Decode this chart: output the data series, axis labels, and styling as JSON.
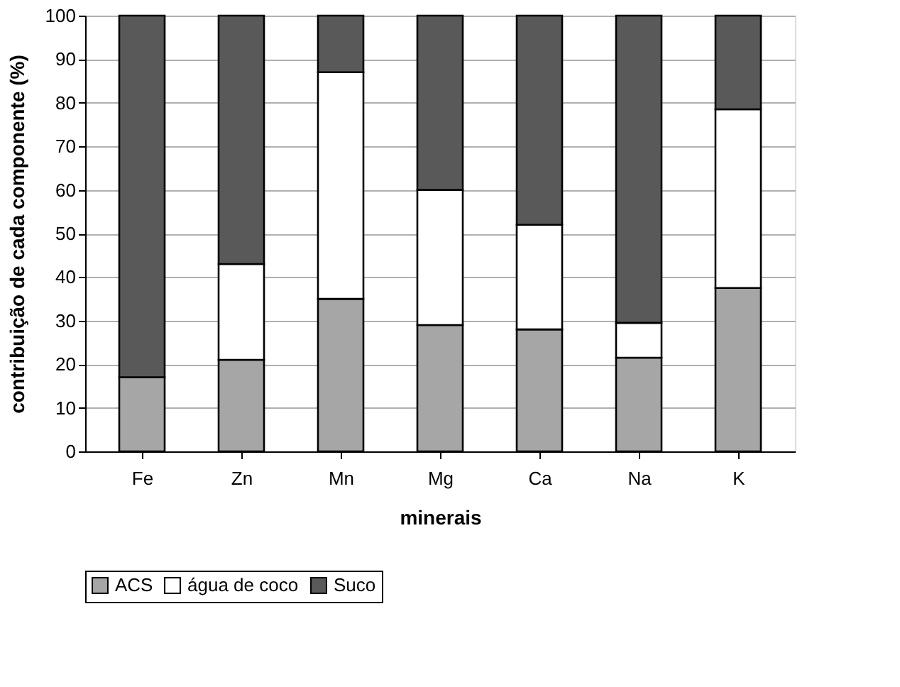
{
  "chart_data": {
    "type": "bar",
    "stacked": true,
    "xlabel": "minerais",
    "ylabel": "contribuição de cada componente (%)",
    "categories": [
      "Fe",
      "Zn",
      "Mn",
      "Mg",
      "Ca",
      "Na",
      "K"
    ],
    "series": [
      {
        "name": "ACS",
        "color": "#a6a6a6",
        "values": [
          17,
          21,
          35,
          29,
          28,
          21.5,
          37.5
        ]
      },
      {
        "name": "água de coco",
        "color": "#ffffff",
        "values": [
          0,
          22,
          52,
          31,
          24,
          8,
          41
        ]
      },
      {
        "name": "Suco",
        "color": "#595959",
        "values": [
          83,
          57,
          13,
          40,
          48,
          70.5,
          21.5
        ]
      }
    ],
    "ylim": [
      0,
      100
    ],
    "yticks": [
      0,
      10,
      20,
      30,
      40,
      50,
      60,
      70,
      80,
      90,
      100
    ],
    "grid": "y",
    "legend": "bottom"
  }
}
